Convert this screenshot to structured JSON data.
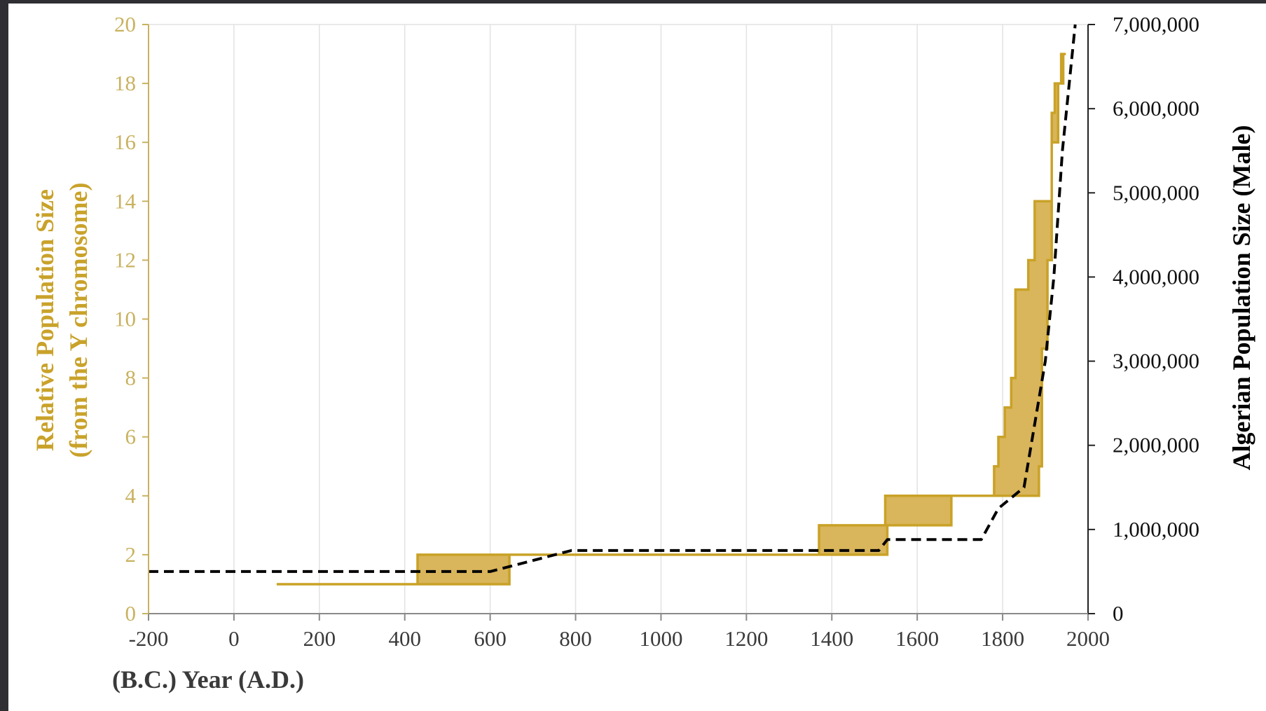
{
  "colors": {
    "background_frame": "#2f2f33",
    "plot_background": "#ffffff",
    "gridline": "#e2e2e2",
    "left_axis": "#c9b25f",
    "left_label": "#c9a22a",
    "fill": "#d9b55b",
    "fill_edge": "#c9a227",
    "dashed_line": "#000000"
  },
  "chart_data": {
    "type": "area",
    "x": {
      "label": "(B.C.) Year (A.D.)",
      "range": [
        -200,
        2000
      ],
      "ticks": [
        -200,
        0,
        200,
        400,
        600,
        800,
        1000,
        1200,
        1400,
        1600,
        1800,
        2000
      ],
      "tick_labels": [
        "-200",
        "0",
        "200",
        "400",
        "600",
        "800",
        "1000",
        "1200",
        "1400",
        "1600",
        "1800",
        "2000"
      ],
      "vertical_grid": true
    },
    "y_left": {
      "label_lines": [
        "Relative Population Size",
        "(from the Y chromosome)"
      ],
      "range": [
        0,
        20
      ],
      "ticks": [
        0,
        2,
        4,
        6,
        8,
        10,
        12,
        14,
        16,
        18,
        20
      ],
      "tick_labels": [
        "0",
        "2",
        "4",
        "6",
        "8",
        "10",
        "12",
        "14",
        "16",
        "18",
        "20"
      ]
    },
    "y_right": {
      "label": "Algerian Population Size (Male)",
      "range": [
        0,
        7000000
      ],
      "ticks": [
        0,
        1000000,
        2000000,
        3000000,
        4000000,
        5000000,
        6000000,
        7000000
      ],
      "tick_labels": [
        "0",
        "1,000,000",
        "2,000,000",
        "3,000,000",
        "4,000,000",
        "5,000,000",
        "6,000,000",
        "7,000,000"
      ]
    },
    "series": [
      {
        "axis": "left",
        "style": "filled step band",
        "upper_step": [
          [
            100,
            1
          ],
          [
            430,
            1
          ],
          [
            430,
            2
          ],
          [
            1370,
            2
          ],
          [
            1370,
            3
          ],
          [
            1525,
            3
          ],
          [
            1525,
            4
          ],
          [
            1780,
            4
          ],
          [
            1780,
            5
          ],
          [
            1790,
            5
          ],
          [
            1790,
            6
          ],
          [
            1805,
            6
          ],
          [
            1805,
            7
          ],
          [
            1820,
            7
          ],
          [
            1820,
            8
          ],
          [
            1830,
            8
          ],
          [
            1830,
            11
          ],
          [
            1860,
            11
          ],
          [
            1860,
            12
          ],
          [
            1875,
            12
          ],
          [
            1875,
            14
          ],
          [
            1915,
            14
          ],
          [
            1915,
            17
          ],
          [
            1922,
            17
          ],
          [
            1922,
            18
          ],
          [
            1937,
            18
          ],
          [
            1937,
            19
          ],
          [
            1948,
            19
          ]
        ],
        "lower_step": [
          [
            100,
            1
          ],
          [
            645,
            1
          ],
          [
            645,
            2
          ],
          [
            1530,
            2
          ],
          [
            1530,
            3
          ],
          [
            1680,
            3
          ],
          [
            1680,
            4
          ],
          [
            1885,
            4
          ],
          [
            1885,
            5
          ],
          [
            1892,
            5
          ],
          [
            1892,
            9
          ],
          [
            1905,
            9
          ],
          [
            1905,
            12
          ],
          [
            1915,
            12
          ],
          [
            1915,
            16
          ],
          [
            1930,
            16
          ],
          [
            1930,
            18
          ],
          [
            1942,
            18
          ],
          [
            1942,
            19
          ],
          [
            1948,
            19
          ]
        ]
      },
      {
        "axis": "right",
        "style": "dashed line",
        "points": [
          [
            -200,
            500000
          ],
          [
            600,
            500000
          ],
          [
            790,
            750000
          ],
          [
            1510,
            750000
          ],
          [
            1530,
            880000
          ],
          [
            1750,
            880000
          ],
          [
            1790,
            1250000
          ],
          [
            1850,
            1500000
          ],
          [
            1900,
            3000000
          ],
          [
            1920,
            4000000
          ],
          [
            1940,
            5500000
          ],
          [
            1970,
            7000000
          ]
        ]
      }
    ]
  }
}
